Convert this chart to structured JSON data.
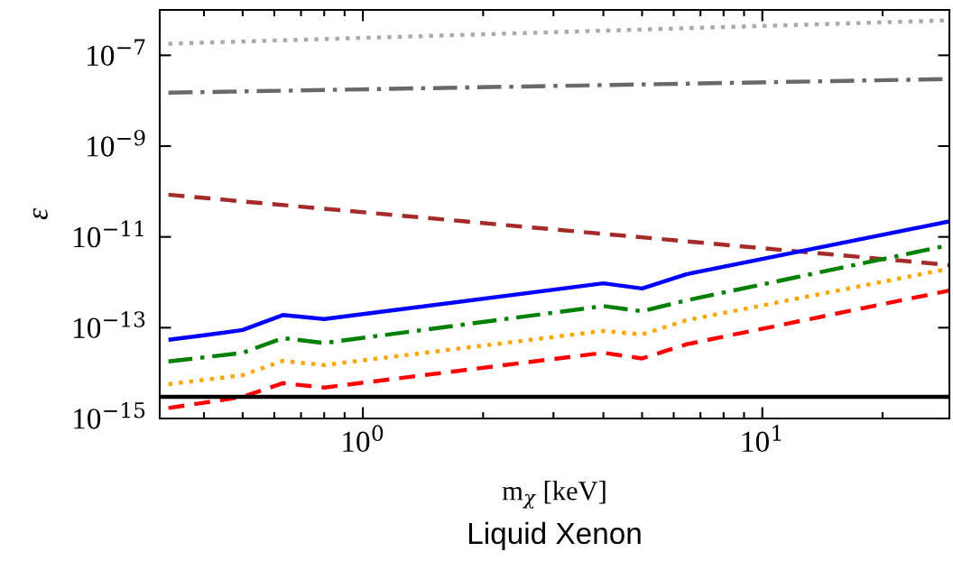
{
  "chart_data": {
    "type": "line",
    "xlabel": "m$_{χ}$ [keV]",
    "ylabel": "ε",
    "log": "xy",
    "grid": false,
    "legend": false,
    "xlim": [
      0.31,
      29.4
    ],
    "ylim": [
      1e-15,
      1e-06
    ],
    "xticks": [
      {
        "value": 1,
        "label": "10$^{0}$"
      },
      {
        "value": 10,
        "label": "10$^{1}$"
      },
      {
        "value": 0.4,
        "label": null
      },
      {
        "value": 0.5,
        "label": null
      },
      {
        "value": 0.6,
        "label": null
      },
      {
        "value": 0.7,
        "label": null
      },
      {
        "value": 0.8,
        "label": null
      },
      {
        "value": 0.9,
        "label": null
      },
      {
        "value": 2,
        "label": null
      },
      {
        "value": 3,
        "label": null
      },
      {
        "value": 4,
        "label": null
      },
      {
        "value": 5,
        "label": null
      },
      {
        "value": 6,
        "label": null
      },
      {
        "value": 7,
        "label": null
      },
      {
        "value": 8,
        "label": null
      },
      {
        "value": 9,
        "label": null
      },
      {
        "value": 20,
        "label": null
      }
    ],
    "yticks": [
      {
        "value": 1e-07,
        "label": "10$^{−7}$"
      },
      {
        "value": 1e-09,
        "label": "10$^{−9}$"
      },
      {
        "value": 1e-11,
        "label": "10$^{−11}$"
      },
      {
        "value": 1e-13,
        "label": "10$^{−13}$"
      },
      {
        "value": 1e-15,
        "label": "10$^{−15}$"
      }
    ],
    "annotations": [
      "Liquid Xenon"
    ],
    "series": [
      {
        "color": "#aaaaaa",
        "line_style": "dotted",
        "x": [
          0.326,
          29.4
        ],
        "values": [
          1.8e-07,
          5.9e-07
        ]
      },
      {
        "color": "#696969",
        "line_style": "dashdot",
        "x": [
          0.326,
          29.4
        ],
        "values": [
          1.5e-08,
          3e-08
        ]
      },
      {
        "color": "#a52a2a",
        "line_style": "dashed",
        "x": [
          0.326,
          29.4
        ],
        "values": [
          8.5e-11,
          2.4e-12
        ]
      },
      {
        "color": "#0000ff",
        "line_style": "solid",
        "x": [
          0.326,
          0.4,
          0.5,
          0.63,
          0.8,
          4,
          5,
          6.45,
          29.4
        ],
        "values": [
          5.4e-14,
          6.8e-14,
          8.9e-14,
          1.9e-13,
          1.55e-13,
          9.5e-13,
          7.3e-13,
          1.5e-12,
          2.2e-11
        ]
      },
      {
        "color": "#008000",
        "line_style": "dashdot",
        "x": [
          0.326,
          0.5,
          0.63,
          0.8,
          4,
          5,
          6.45,
          29.4
        ],
        "values": [
          1.8e-14,
          2.8e-14,
          5.9e-14,
          4.6e-14,
          3e-13,
          2.3e-13,
          4e-13,
          6.6e-12
        ]
      },
      {
        "color": "#ffa500",
        "line_style": "dotted",
        "x": [
          0.326,
          0.5,
          0.63,
          0.8,
          4,
          5,
          6.45,
          29.4
        ],
        "values": [
          5.7e-15,
          9e-15,
          1.85e-14,
          1.5e-14,
          8.5e-14,
          7.1e-14,
          1.45e-13,
          2e-12
        ]
      },
      {
        "color": "#ff0000",
        "line_style": "dashed",
        "x": [
          0.326,
          0.5,
          0.63,
          0.8,
          4,
          5,
          6.45,
          29.4
        ],
        "values": [
          1.7e-15,
          3e-15,
          6e-15,
          4.8e-15,
          2.8e-14,
          2.1e-14,
          4.3e-14,
          6.6e-13
        ]
      },
      {
        "color": "#000000",
        "line_style": "solid",
        "x": [
          0.31,
          29.4
        ],
        "values": [
          3e-15,
          3e-15
        ]
      }
    ]
  }
}
